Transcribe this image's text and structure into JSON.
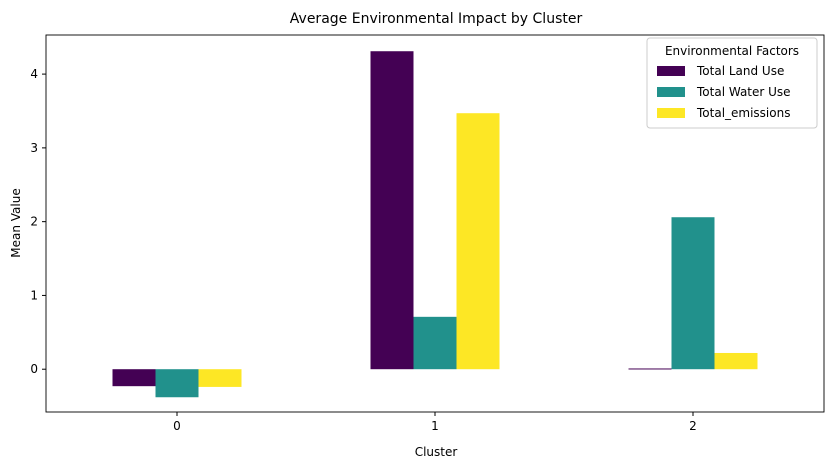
{
  "chart_data": {
    "type": "bar",
    "title": "Average Environmental Impact by Cluster",
    "xlabel": "Cluster",
    "ylabel": "Mean Value",
    "categories": [
      "0",
      "1",
      "2"
    ],
    "series": [
      {
        "name": "Total Land Use",
        "color": "#440154",
        "values": [
          -0.23,
          4.31,
          0.01
        ]
      },
      {
        "name": "Total Water Use",
        "color": "#21918c",
        "values": [
          -0.38,
          0.71,
          2.06
        ]
      },
      {
        "name": "Total_emissions",
        "color": "#fde725",
        "values": [
          -0.24,
          3.47,
          0.22
        ]
      }
    ],
    "ylim": [
      -0.58,
      4.53
    ],
    "yticks": [
      0,
      1,
      2,
      3,
      4
    ],
    "grid": false,
    "legend": {
      "title": "Environmental Factors",
      "placement": "top-right"
    }
  }
}
